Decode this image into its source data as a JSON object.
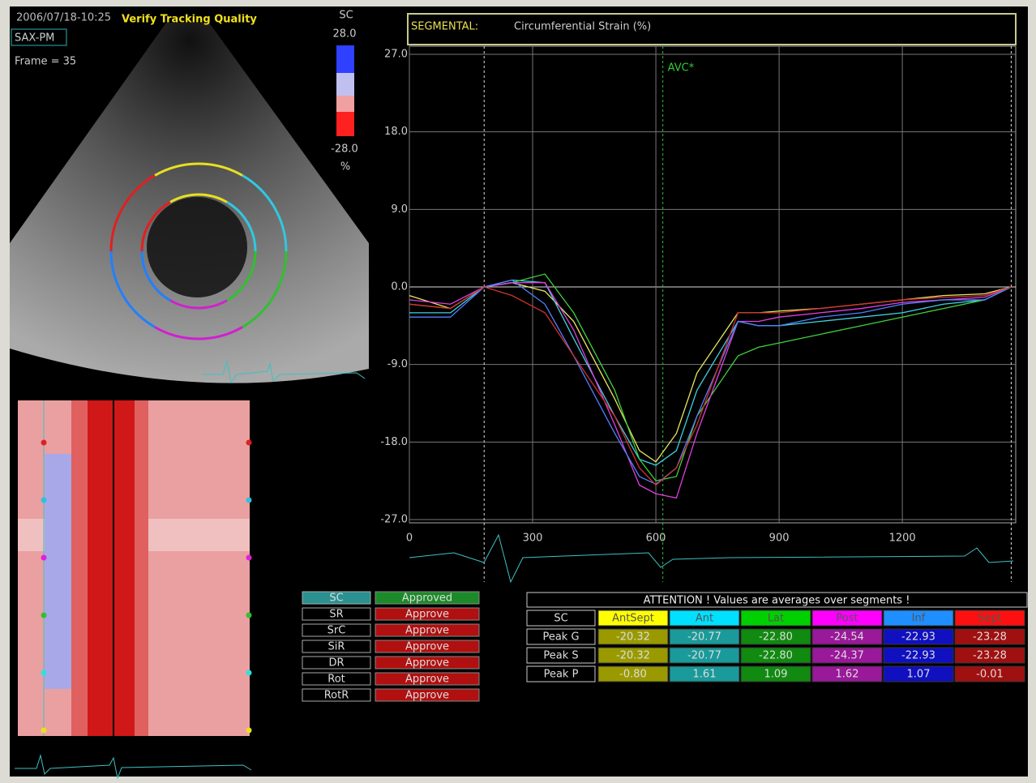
{
  "header": {
    "timestamp": "2006/07/18-10:25",
    "title": "Verify Tracking Quality",
    "view": "SAX-PM",
    "frame": "Frame = 35"
  },
  "color_scale": {
    "label": "SC",
    "max": "28.0",
    "min": "-28.0",
    "unit": "%"
  },
  "chart_data": {
    "type": "line",
    "title": "SEGMENTAL:",
    "subtitle": "Circumferential Strain (%)",
    "annotation": {
      "label": "AVC*",
      "x": 617
    },
    "event_lines": [
      182,
      1465
    ],
    "x": [
      0,
      100,
      182,
      250,
      330,
      400,
      500,
      560,
      600,
      650,
      700,
      800,
      850,
      900,
      1000,
      1100,
      1200,
      1300,
      1400,
      1465
    ],
    "xlim": [
      0,
      1476
    ],
    "xticks": [
      0,
      300,
      600,
      900,
      1200
    ],
    "ylim": [
      -27,
      27
    ],
    "yticks": [
      {
        "value": 27,
        "label": "27.0"
      },
      {
        "value": 18,
        "label": "18.0"
      },
      {
        "value": 9,
        "label": "9.0"
      },
      {
        "value": 0,
        "label": "0.0"
      },
      {
        "value": -9,
        "label": "-9.0"
      },
      {
        "value": -18,
        "label": "-18.0"
      },
      {
        "value": -27,
        "label": "-27.0"
      }
    ],
    "grid": true,
    "series": [
      {
        "color": "#e8e860",
        "values": [
          -1,
          -2.5,
          0,
          0.5,
          -0.5,
          -4,
          -13,
          -19,
          -20.3,
          -17,
          -10,
          -3,
          -3,
          -2.8,
          -2.5,
          -2,
          -1.5,
          -1,
          -0.8,
          0
        ]
      },
      {
        "color": "#40d0e0",
        "values": [
          -3,
          -3,
          0,
          0.8,
          0.5,
          -6,
          -15,
          -20,
          -20.7,
          -19,
          -12,
          -4,
          -4.5,
          -4.5,
          -4,
          -3.5,
          -3,
          -2,
          -1.5,
          0
        ]
      },
      {
        "color": "#40d040",
        "values": [
          -2,
          -2.5,
          0,
          0.5,
          1.5,
          -3,
          -12,
          -20,
          -22.5,
          -22,
          -15,
          -8,
          -7,
          -6.5,
          -5.5,
          -4.5,
          -3.5,
          -2.5,
          -1.5,
          0
        ]
      },
      {
        "color": "#e040e0",
        "values": [
          -1.5,
          -2,
          0,
          0.5,
          0.5,
          -5,
          -16,
          -23,
          -24,
          -24.5,
          -17,
          -4,
          -4,
          -3.5,
          -3,
          -2.5,
          -1.8,
          -1.5,
          -1.2,
          0
        ]
      },
      {
        "color": "#5080ff",
        "values": [
          -3.5,
          -3.5,
          0,
          0.8,
          -2,
          -8,
          -17,
          -22,
          -22.9,
          -21,
          -15,
          -4,
          -4.5,
          -4.5,
          -3.5,
          -3,
          -2,
          -1.5,
          -1.5,
          0
        ]
      },
      {
        "color": "#d03030",
        "values": [
          -2,
          -2.5,
          0,
          -1,
          -3,
          -8,
          -15,
          -21,
          -23,
          -21,
          -16,
          -3,
          -3,
          -3,
          -2.5,
          -2,
          -1.5,
          -1.2,
          -1,
          0
        ]
      }
    ]
  },
  "buttons": [
    [
      "SC",
      "Approved"
    ],
    [
      "SR",
      "Approve"
    ],
    [
      "SrC",
      "Approve"
    ],
    [
      "SiR",
      "Approve"
    ],
    [
      "DR",
      "Approve"
    ],
    [
      "Rot",
      "Approve"
    ],
    [
      "RotR",
      "Approve"
    ]
  ],
  "results": {
    "attention": "ATTENTION !  Values  are  averages  over  segments !",
    "header": [
      "SC",
      "AntSept",
      "Ant",
      "Lat",
      "Post",
      "Inf",
      "Sept"
    ],
    "rows": [
      [
        "Peak G",
        "-20.32",
        "-20.77",
        "-22.80",
        "-24.54",
        "-22.93",
        "-23.28"
      ],
      [
        "Peak S",
        "-20.32",
        "-20.77",
        "-22.80",
        "-24.37",
        "-22.93",
        "-23.28"
      ],
      [
        "Peak P",
        "-0.80",
        "1.61",
        "1.09",
        "1.62",
        "1.07",
        "-0.01"
      ]
    ]
  }
}
